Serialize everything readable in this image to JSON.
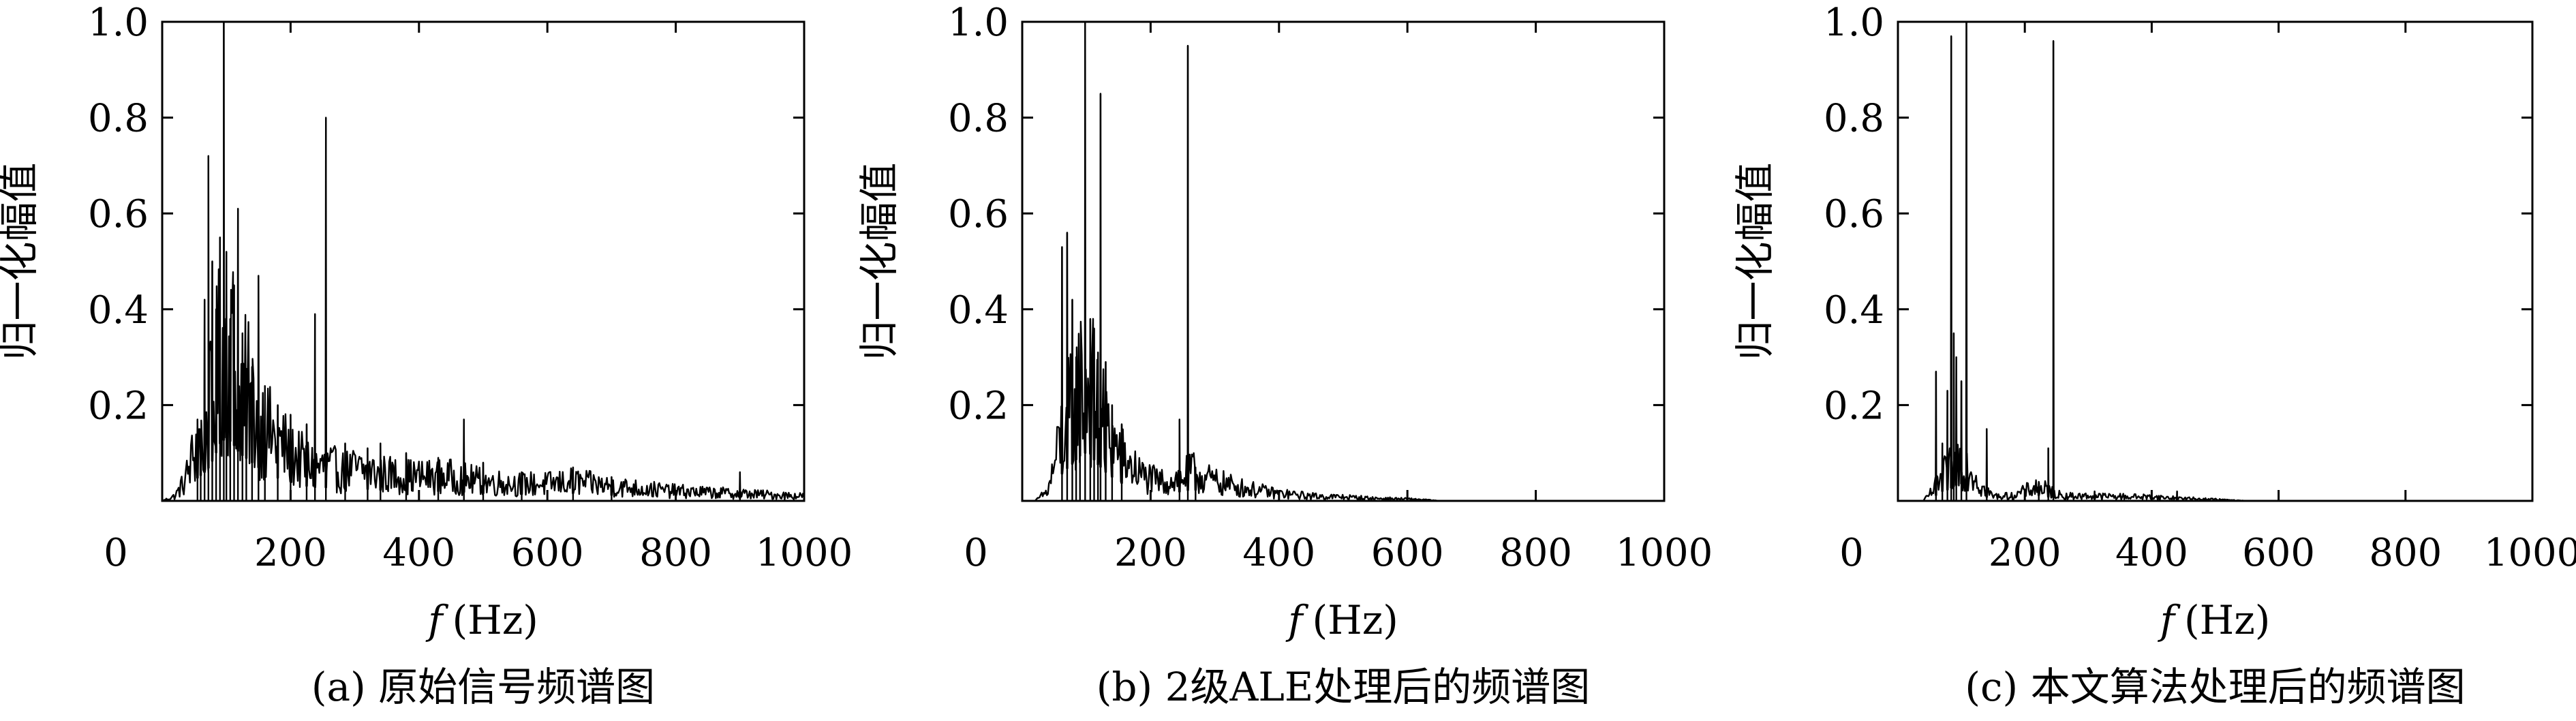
{
  "chart_data": [
    {
      "type": "line",
      "caption": "(a) 原始信号频谱图",
      "xlabel_var": "f",
      "xlabel_unit": "(Hz)",
      "ylabel": "归一化幅值",
      "xlim": [
        0,
        1000
      ],
      "ylim": [
        0,
        1.0
      ],
      "xticks": [
        "0",
        "200",
        "400",
        "600",
        "800",
        "1000"
      ],
      "yticks": [
        "0.2",
        "0.4",
        "0.6",
        "0.8",
        "1.0"
      ],
      "series": [
        {
          "noise": [
            [
              0,
              0.0
            ],
            [
              20,
              0.01
            ],
            [
              35,
              0.04
            ],
            [
              45,
              0.08
            ],
            [
              55,
              0.12
            ],
            [
              70,
              0.16
            ],
            [
              80,
              0.22
            ],
            [
              90,
              0.3
            ],
            [
              100,
              0.33
            ],
            [
              110,
              0.3
            ],
            [
              120,
              0.25
            ],
            [
              140,
              0.2
            ],
            [
              160,
              0.15
            ],
            [
              180,
              0.12
            ],
            [
              200,
              0.1
            ],
            [
              220,
              0.08
            ],
            [
              240,
              0.07
            ],
            [
              260,
              0.07
            ],
            [
              280,
              0.06
            ],
            [
              300,
              0.065
            ],
            [
              350,
              0.055
            ],
            [
              400,
              0.05
            ],
            [
              450,
              0.05
            ],
            [
              500,
              0.04
            ],
            [
              550,
              0.035
            ],
            [
              600,
              0.035
            ],
            [
              640,
              0.04
            ],
            [
              700,
              0.03
            ],
            [
              800,
              0.02
            ],
            [
              900,
              0.015
            ],
            [
              1000,
              0.01
            ]
          ],
          "peaks": [
            [
              55,
              0.17
            ],
            [
              60,
              0.15
            ],
            [
              66,
              0.42
            ],
            [
              72,
              0.72
            ],
            [
              78,
              0.5
            ],
            [
              84,
              0.4
            ],
            [
              90,
              0.55
            ],
            [
              96,
              1.0
            ],
            [
              100,
              0.52
            ],
            [
              106,
              0.38
            ],
            [
              112,
              0.45
            ],
            [
              118,
              0.61
            ],
            [
              125,
              0.35
            ],
            [
              131,
              0.25
            ],
            [
              140,
              0.28
            ],
            [
              150,
              0.47
            ],
            [
              160,
              0.24
            ],
            [
              180,
              0.2
            ],
            [
              200,
              0.18
            ],
            [
              225,
              0.16
            ],
            [
              238,
              0.39
            ],
            [
              255,
              0.8
            ],
            [
              285,
              0.12
            ],
            [
              320,
              0.11
            ],
            [
              340,
              0.12
            ],
            [
              380,
              0.1
            ],
            [
              430,
              0.09
            ],
            [
              470,
              0.17
            ],
            [
              500,
              0.08
            ],
            [
              560,
              0.06
            ],
            [
              640,
              0.07
            ],
            [
              700,
              0.05
            ],
            [
              900,
              0.06
            ]
          ]
        }
      ]
    },
    {
      "type": "line",
      "caption": "(b) 2级ALE处理后的频谱图",
      "xlabel_var": "f",
      "xlabel_unit": "(Hz)",
      "ylabel": "归一化幅值",
      "xlim": [
        0,
        1000
      ],
      "ylim": [
        0,
        1.0
      ],
      "xticks": [
        "0",
        "200",
        "400",
        "600",
        "800",
        "1000"
      ],
      "yticks": [
        "0.2",
        "0.4",
        "0.6",
        "0.8",
        "1.0"
      ],
      "series": [
        {
          "noise": [
            [
              0,
              0.0
            ],
            [
              20,
              0.0
            ],
            [
              40,
              0.02
            ],
            [
              55,
              0.1
            ],
            [
              65,
              0.16
            ],
            [
              75,
              0.18
            ],
            [
              85,
              0.22
            ],
            [
              95,
              0.25
            ],
            [
              105,
              0.25
            ],
            [
              115,
              0.2
            ],
            [
              130,
              0.15
            ],
            [
              150,
              0.1
            ],
            [
              170,
              0.07
            ],
            [
              190,
              0.05
            ],
            [
              210,
              0.04
            ],
            [
              230,
              0.04
            ],
            [
              250,
              0.05
            ],
            [
              265,
              0.06
            ],
            [
              280,
              0.05
            ],
            [
              300,
              0.04
            ],
            [
              350,
              0.025
            ],
            [
              400,
              0.015
            ],
            [
              450,
              0.01
            ],
            [
              500,
              0.008
            ],
            [
              550,
              0.005
            ],
            [
              620,
              0.003
            ],
            [
              650,
              0.0
            ],
            [
              1000,
              0.0
            ]
          ],
          "peaks": [
            [
              62,
              0.53
            ],
            [
              70,
              0.56
            ],
            [
              78,
              0.42
            ],
            [
              84,
              0.3
            ],
            [
              90,
              0.25
            ],
            [
              98,
              1.0
            ],
            [
              106,
              0.38
            ],
            [
              112,
              0.36
            ],
            [
              118,
              0.31
            ],
            [
              122,
              0.85
            ],
            [
              130,
              0.29
            ],
            [
              140,
              0.2
            ],
            [
              155,
              0.16
            ],
            [
              245,
              0.17
            ],
            [
              258,
              0.95
            ],
            [
              270,
              0.07
            ]
          ]
        }
      ]
    },
    {
      "type": "line",
      "caption": "(c) 本文算法处理后的频谱图",
      "xlabel_var": "f",
      "xlabel_unit": "(Hz)",
      "ylabel": "归一化幅值",
      "xlim": [
        0,
        1000
      ],
      "ylim": [
        0,
        1.0
      ],
      "xticks": [
        "0",
        "200",
        "400",
        "600",
        "800",
        "1000"
      ],
      "yticks": [
        "0.2",
        "0.4",
        "0.6",
        "0.8",
        "1.0"
      ],
      "series": [
        {
          "noise": [
            [
              0,
              0.0
            ],
            [
              40,
              0.0
            ],
            [
              55,
              0.02
            ],
            [
              70,
              0.05
            ],
            [
              80,
              0.06
            ],
            [
              90,
              0.08
            ],
            [
              100,
              0.09
            ],
            [
              110,
              0.07
            ],
            [
              120,
              0.06
            ],
            [
              130,
              0.03
            ],
            [
              150,
              0.01
            ],
            [
              180,
              0.01
            ],
            [
              200,
              0.02
            ],
            [
              220,
              0.03
            ],
            [
              240,
              0.02
            ],
            [
              260,
              0.01
            ],
            [
              300,
              0.01
            ],
            [
              400,
              0.008
            ],
            [
              450,
              0.005
            ],
            [
              500,
              0.003
            ],
            [
              550,
              0.0
            ],
            [
              1000,
              0.0
            ]
          ],
          "peaks": [
            [
              60,
              0.27
            ],
            [
              70,
              0.12
            ],
            [
              78,
              0.23
            ],
            [
              84,
              0.97
            ],
            [
              88,
              0.35
            ],
            [
              92,
              0.3
            ],
            [
              100,
              0.25
            ],
            [
              108,
              1.0
            ],
            [
              140,
              0.15
            ],
            [
              222,
              0.04
            ],
            [
              237,
              0.11
            ],
            [
              245,
              0.96
            ],
            [
              310,
              0.02
            ],
            [
              440,
              0.02
            ]
          ]
        }
      ]
    }
  ]
}
